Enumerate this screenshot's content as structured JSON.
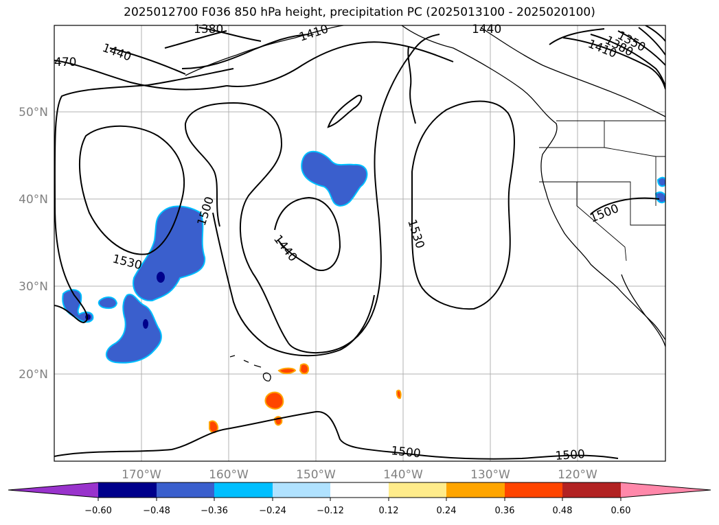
{
  "title": "2025012700 F036 850 hPa height, precipitation PC (2025013100 - 2025020100)",
  "map": {
    "lat_labels": [
      "50°N",
      "40°N",
      "30°N",
      "20°N"
    ],
    "lon_labels": [
      "170°W",
      "160°W",
      "150°W",
      "140°W",
      "130°W",
      "120°W"
    ],
    "contour_labels": [
      "1380",
      "1410",
      "1440",
      "1350",
      "1380",
      "1410",
      "470",
      "1440",
      "1500",
      "1530",
      "1440",
      "1530",
      "1500",
      "1500",
      "1500"
    ]
  },
  "colorbar": {
    "ticks": [
      "−0.60",
      "−0.48",
      "−0.36",
      "−0.24",
      "−0.12",
      "0.12",
      "0.24",
      "0.36",
      "0.48",
      "0.60"
    ],
    "colors": [
      "#9933cc",
      "#00008b",
      "#3a5fcd",
      "#00bfff",
      "#b0e2ff",
      "#ffffff",
      "#ffec8b",
      "#ffa500",
      "#ff4500",
      "#b22222",
      "#ff88aa"
    ]
  }
}
